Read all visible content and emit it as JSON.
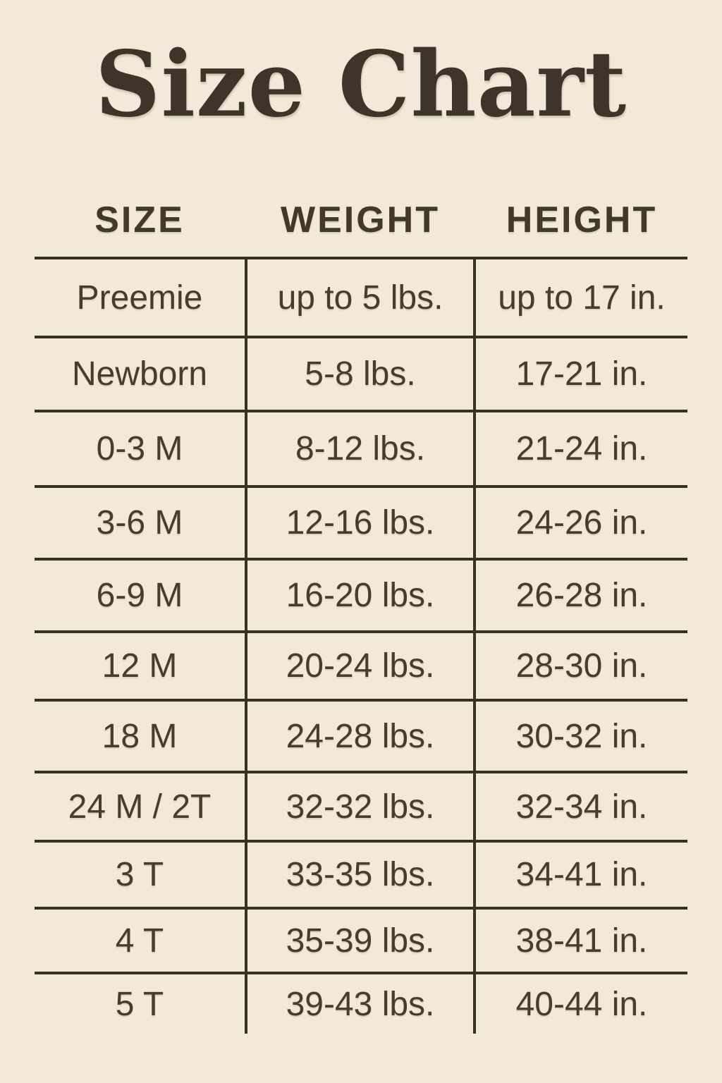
{
  "page_title": "Size Chart",
  "colors": {
    "background": "#f2e9d8",
    "ink": "#42382b",
    "line": "#3a3126"
  },
  "chart_data": {
    "type": "table",
    "title": "Size Chart",
    "columns": [
      "SIZE",
      "WEIGHT",
      "HEIGHT"
    ],
    "rows": [
      [
        "Preemie",
        "up to 5 lbs.",
        "up to 17 in."
      ],
      [
        "Newborn",
        "5-8 lbs.",
        "17-21 in."
      ],
      [
        "0-3 M",
        "8-12 lbs.",
        "21-24 in."
      ],
      [
        "3-6 M",
        "12-16 lbs.",
        "24-26 in."
      ],
      [
        "6-9 M",
        "16-20 lbs.",
        "26-28 in."
      ],
      [
        "12 M",
        "20-24 lbs.",
        "28-30 in."
      ],
      [
        "18 M",
        "24-28 lbs.",
        "30-32 in."
      ],
      [
        "24 M / 2T",
        "32-32 lbs.",
        "32-34 in."
      ],
      [
        "3 T",
        "33-35 lbs.",
        "34-41 in."
      ],
      [
        "4 T",
        "35-39 lbs.",
        "38-41 in."
      ],
      [
        "5 T",
        "39-43 lbs.",
        "40-44 in."
      ]
    ],
    "layout": {
      "grid": "horizontal rules between rows, vertical rules between columns, no outer frame, no bottom rule"
    }
  }
}
